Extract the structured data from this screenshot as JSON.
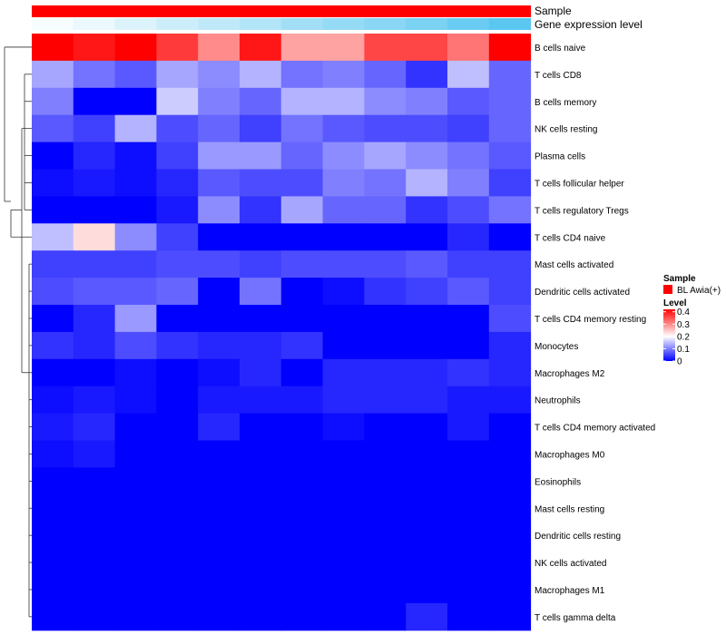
{
  "chart_data": {
    "type": "heatmap",
    "annotations": [
      {
        "label": "Sample"
      },
      {
        "label": "Gene expression level"
      }
    ],
    "rows": [
      "B cells naive",
      "T cells CD8",
      "B cells memory",
      "NK cells resting",
      "Plasma cells",
      "T cells follicular helper",
      "T cells regulatory  Tregs",
      "T cells CD4 naive",
      "Mast cells activated",
      "Dendritic cells activated",
      "T cells CD4 memory resting",
      "Monocytes",
      "Macrophages M2",
      "Neutrophils",
      "T cells CD4 memory activated",
      "Macrophages M0",
      "Eosinophils",
      "Mast cells resting",
      "Dendritic cells resting",
      "NK cells activated",
      "Macrophages M1",
      "T cells gamma delta"
    ],
    "values": [
      [
        0.42,
        0.4,
        0.42,
        0.37,
        0.3,
        0.4,
        0.28,
        0.28,
        0.36,
        0.36,
        0.32,
        0.42
      ],
      [
        0.13,
        0.09,
        0.07,
        0.13,
        0.11,
        0.14,
        0.09,
        0.1,
        0.08,
        0.04,
        0.15,
        0.08
      ],
      [
        0.1,
        0.0,
        0.0,
        0.16,
        0.1,
        0.08,
        0.14,
        0.14,
        0.11,
        0.1,
        0.07,
        0.08
      ],
      [
        0.07,
        0.05,
        0.14,
        0.06,
        0.08,
        0.05,
        0.09,
        0.07,
        0.06,
        0.06,
        0.05,
        0.08
      ],
      [
        0.0,
        0.03,
        0.01,
        0.05,
        0.12,
        0.12,
        0.08,
        0.11,
        0.13,
        0.11,
        0.09,
        0.07
      ],
      [
        0.01,
        0.02,
        0.01,
        0.03,
        0.07,
        0.06,
        0.06,
        0.1,
        0.09,
        0.14,
        0.1,
        0.05
      ],
      [
        0.0,
        0.0,
        0.0,
        0.02,
        0.11,
        0.04,
        0.13,
        0.08,
        0.08,
        0.04,
        0.06,
        0.09
      ],
      [
        0.15,
        0.23,
        0.11,
        0.05,
        0.0,
        0.0,
        0.0,
        0.0,
        0.0,
        0.0,
        0.03,
        0.0
      ],
      [
        0.05,
        0.05,
        0.05,
        0.06,
        0.06,
        0.05,
        0.06,
        0.06,
        0.06,
        0.07,
        0.05,
        0.05
      ],
      [
        0.06,
        0.07,
        0.07,
        0.08,
        0.0,
        0.09,
        0.0,
        0.01,
        0.04,
        0.05,
        0.07,
        0.05
      ],
      [
        0.0,
        0.03,
        0.12,
        0.0,
        0.0,
        0.0,
        0.0,
        0.0,
        0.0,
        0.0,
        0.0,
        0.06
      ],
      [
        0.04,
        0.03,
        0.06,
        0.04,
        0.03,
        0.03,
        0.04,
        0.0,
        0.0,
        0.0,
        0.0,
        0.03
      ],
      [
        0.0,
        0.0,
        0.01,
        0.0,
        0.01,
        0.03,
        0.0,
        0.03,
        0.03,
        0.03,
        0.04,
        0.03
      ],
      [
        0.01,
        0.02,
        0.01,
        0.0,
        0.02,
        0.02,
        0.02,
        0.03,
        0.03,
        0.03,
        0.02,
        0.02
      ],
      [
        0.02,
        0.03,
        0.0,
        0.0,
        0.03,
        0.0,
        0.0,
        0.01,
        0.0,
        0.0,
        0.02,
        0.0
      ],
      [
        0.01,
        0.02,
        0.0,
        0.0,
        0.0,
        0.0,
        0.0,
        0.0,
        0.0,
        0.0,
        0.0,
        0.0
      ],
      [
        0.0,
        0.0,
        0.0,
        0.0,
        0.0,
        0.0,
        0.0,
        0.0,
        0.0,
        0.0,
        0.0,
        0.0
      ],
      [
        0.0,
        0.0,
        0.0,
        0.0,
        0.0,
        0.0,
        0.0,
        0.0,
        0.0,
        0.0,
        0.0,
        0.0
      ],
      [
        0.0,
        0.0,
        0.0,
        0.0,
        0.0,
        0.0,
        0.0,
        0.0,
        0.0,
        0.0,
        0.0,
        0.0
      ],
      [
        0.0,
        0.0,
        0.0,
        0.0,
        0.0,
        0.0,
        0.0,
        0.0,
        0.0,
        0.0,
        0.0,
        0.0
      ],
      [
        0.0,
        0.0,
        0.0,
        0.0,
        0.0,
        0.0,
        0.0,
        0.0,
        0.0,
        0.0,
        0.0,
        0.0
      ],
      [
        0.0,
        0.0,
        0.0,
        0.0,
        0.0,
        0.0,
        0.0,
        0.0,
        0.0,
        0.03,
        0.0,
        0.0
      ]
    ],
    "gene_expression_level": [
      0.05,
      0.12,
      0.2,
      0.3,
      0.38,
      0.45,
      0.55,
      0.62,
      0.7,
      0.78,
      0.88,
      0.97
    ],
    "legend": {
      "sample_title": "Sample",
      "sample_entry": "BL Awia(+)",
      "sample_color": "#ff0000",
      "level_title": "Level",
      "level_ticks": [
        0.4,
        0.3,
        0.2,
        0.1,
        0
      ],
      "level_range": [
        0,
        0.42
      ]
    },
    "colors": {
      "low": "#0000ff",
      "mid": "#ffffff",
      "high": "#ff0000",
      "annotation_low": "#ffffff",
      "annotation_high": "#56c5f0"
    },
    "dendrogram": "left"
  }
}
